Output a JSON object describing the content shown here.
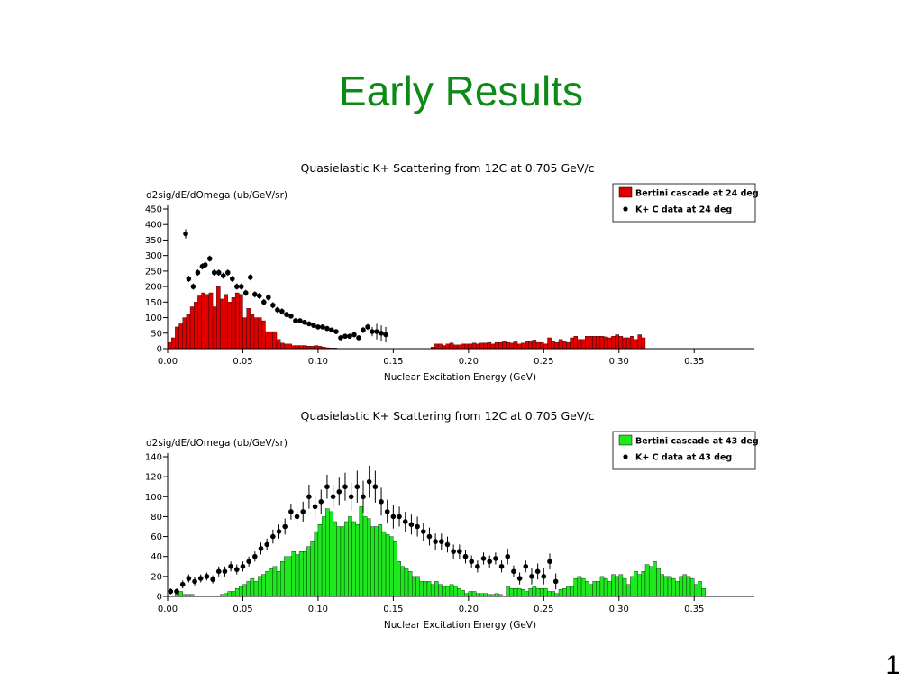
{
  "slide": {
    "title": "Early Results",
    "page_number": "1"
  },
  "chart_data": [
    {
      "type": "bar",
      "title": "Quasielastic K+ Scattering from 12C at 0.705 GeV/c",
      "ylabel": "d2sig/dE/dOmega (ub/GeV/sr)",
      "xlabel": "Nuclear Excitation Energy (GeV)",
      "xlim": [
        0,
        0.39
      ],
      "ylim": [
        0,
        450
      ],
      "xticks": [
        "0.00",
        "0.05",
        "0.10",
        "0.15",
        "0.20",
        "0.25",
        "0.30",
        "0.35"
      ],
      "yticks": [
        "0",
        "50",
        "100",
        "150",
        "200",
        "250",
        "300",
        "350",
        "400",
        "450"
      ],
      "legend_position": "top-right",
      "series": [
        {
          "name": "Bertini cascade  at 24 deg",
          "kind": "histogram",
          "color": "#e00000",
          "bin_width": 0.0025,
          "x_start": 0.0,
          "values": [
            20,
            35,
            70,
            80,
            100,
            110,
            135,
            150,
            170,
            180,
            175,
            180,
            135,
            200,
            160,
            175,
            150,
            165,
            180,
            175,
            100,
            130,
            110,
            100,
            100,
            90,
            55,
            55,
            55,
            30,
            18,
            15,
            15,
            10,
            10,
            10,
            10,
            8,
            8,
            10,
            8,
            5,
            3,
            2,
            2,
            0,
            0,
            0,
            0,
            0,
            0,
            0,
            0,
            0,
            0,
            0,
            0,
            0,
            0,
            0,
            0,
            0,
            0,
            0,
            0,
            0,
            0,
            0,
            0,
            0,
            5,
            15,
            15,
            10,
            15,
            18,
            12,
            12,
            15,
            15,
            15,
            18,
            15,
            18,
            18,
            20,
            15,
            20,
            20,
            25,
            20,
            18,
            22,
            15,
            18,
            25,
            25,
            28,
            20,
            20,
            15,
            35,
            25,
            20,
            30,
            25,
            20,
            35,
            40,
            30,
            30,
            40,
            40,
            40,
            40,
            40,
            38,
            35,
            40,
            45,
            40,
            35,
            35,
            40,
            30,
            45,
            35,
            0
          ]
        },
        {
          "name": "K+ C data at 24 deg",
          "kind": "points",
          "color": "#000000",
          "points": [
            [
              0.012,
              370,
              15
            ],
            [
              0.014,
              225,
              10
            ],
            [
              0.017,
              200,
              10
            ],
            [
              0.02,
              245,
              10
            ],
            [
              0.023,
              265,
              10
            ],
            [
              0.025,
              270,
              10
            ],
            [
              0.028,
              290,
              10
            ],
            [
              0.031,
              245,
              10
            ],
            [
              0.034,
              245,
              10
            ],
            [
              0.037,
              235,
              10
            ],
            [
              0.04,
              245,
              10
            ],
            [
              0.043,
              225,
              10
            ],
            [
              0.046,
              200,
              10
            ],
            [
              0.049,
              200,
              10
            ],
            [
              0.052,
              180,
              10
            ],
            [
              0.055,
              230,
              10
            ],
            [
              0.058,
              175,
              10
            ],
            [
              0.061,
              170,
              10
            ],
            [
              0.064,
              150,
              10
            ],
            [
              0.067,
              165,
              10
            ],
            [
              0.07,
              140,
              10
            ],
            [
              0.073,
              125,
              10
            ],
            [
              0.076,
              120,
              10
            ],
            [
              0.079,
              110,
              8
            ],
            [
              0.082,
              105,
              8
            ],
            [
              0.085,
              90,
              8
            ],
            [
              0.088,
              90,
              8
            ],
            [
              0.091,
              85,
              8
            ],
            [
              0.094,
              80,
              8
            ],
            [
              0.097,
              75,
              8
            ],
            [
              0.1,
              70,
              8
            ],
            [
              0.103,
              70,
              8
            ],
            [
              0.106,
              65,
              8
            ],
            [
              0.109,
              60,
              8
            ],
            [
              0.112,
              55,
              8
            ],
            [
              0.115,
              35,
              8
            ],
            [
              0.118,
              40,
              8
            ],
            [
              0.121,
              40,
              8
            ],
            [
              0.124,
              45,
              8
            ],
            [
              0.127,
              35,
              8
            ],
            [
              0.13,
              60,
              10
            ],
            [
              0.133,
              70,
              10
            ],
            [
              0.136,
              55,
              15
            ],
            [
              0.139,
              55,
              25
            ],
            [
              0.142,
              50,
              25
            ],
            [
              0.145,
              45,
              25
            ]
          ]
        }
      ]
    },
    {
      "type": "bar",
      "title": "Quasielastic K+ Scattering from 12C at 0.705 GeV/c",
      "ylabel": "d2sig/dE/dOmega (ub/GeV/sr)",
      "xlabel": "Nuclear Excitation Energy (GeV)",
      "xlim": [
        0,
        0.39
      ],
      "ylim": [
        0,
        140
      ],
      "xticks": [
        "0.00",
        "0.05",
        "0.10",
        "0.15",
        "0.20",
        "0.25",
        "0.30",
        "0.35"
      ],
      "yticks": [
        "0",
        "20",
        "40",
        "60",
        "80",
        "100",
        "120",
        "140"
      ],
      "legend_position": "top-right",
      "series": [
        {
          "name": "Bertini cascade at 43 deg",
          "kind": "histogram",
          "color": "#1ee81e",
          "bin_width": 0.0025,
          "x_start": 0.0,
          "values": [
            0,
            0,
            5,
            5,
            2,
            2,
            2,
            0,
            0,
            0,
            0,
            0,
            0,
            0,
            2,
            3,
            5,
            5,
            8,
            10,
            12,
            15,
            18,
            15,
            20,
            22,
            25,
            28,
            30,
            25,
            35,
            40,
            40,
            45,
            42,
            45,
            45,
            50,
            55,
            65,
            72,
            80,
            88,
            85,
            75,
            70,
            70,
            75,
            80,
            75,
            72,
            90,
            80,
            78,
            70,
            70,
            72,
            65,
            62,
            60,
            55,
            35,
            30,
            28,
            25,
            20,
            20,
            15,
            15,
            15,
            12,
            15,
            12,
            10,
            10,
            12,
            10,
            8,
            6,
            3,
            5,
            5,
            3,
            3,
            3,
            2,
            2,
            3,
            2,
            0,
            10,
            8,
            8,
            8,
            7,
            5,
            8,
            10,
            8,
            8,
            8,
            5,
            5,
            3,
            7,
            8,
            10,
            10,
            18,
            20,
            18,
            15,
            12,
            15,
            15,
            20,
            18,
            15,
            22,
            20,
            22,
            18,
            12,
            20,
            25,
            22,
            25,
            32,
            30,
            35,
            28,
            22,
            20,
            20,
            18,
            15,
            20,
            22,
            20,
            18,
            12,
            15,
            8,
            0
          ]
        },
        {
          "name": "K+ C data at 43 deg",
          "kind": "points",
          "color": "#000000",
          "points": [
            [
              0.002,
              5,
              3
            ],
            [
              0.006,
              5,
              3
            ],
            [
              0.01,
              12,
              4
            ],
            [
              0.014,
              18,
              4
            ],
            [
              0.018,
              15,
              4
            ],
            [
              0.022,
              18,
              4
            ],
            [
              0.026,
              20,
              4
            ],
            [
              0.03,
              17,
              4
            ],
            [
              0.034,
              25,
              5
            ],
            [
              0.038,
              25,
              5
            ],
            [
              0.042,
              30,
              5
            ],
            [
              0.046,
              27,
              5
            ],
            [
              0.05,
              30,
              5
            ],
            [
              0.054,
              35,
              5
            ],
            [
              0.058,
              40,
              5
            ],
            [
              0.062,
              48,
              6
            ],
            [
              0.066,
              52,
              6
            ],
            [
              0.07,
              60,
              7
            ],
            [
              0.074,
              65,
              7
            ],
            [
              0.078,
              70,
              8
            ],
            [
              0.082,
              85,
              8
            ],
            [
              0.086,
              80,
              10
            ],
            [
              0.09,
              85,
              10
            ],
            [
              0.094,
              100,
              12
            ],
            [
              0.098,
              90,
              12
            ],
            [
              0.102,
              95,
              12
            ],
            [
              0.106,
              110,
              12
            ],
            [
              0.11,
              100,
              12
            ],
            [
              0.114,
              105,
              14
            ],
            [
              0.118,
              110,
              14
            ],
            [
              0.122,
              100,
              14
            ],
            [
              0.126,
              110,
              16
            ],
            [
              0.13,
              100,
              16
            ],
            [
              0.134,
              115,
              16
            ],
            [
              0.138,
              110,
              16
            ],
            [
              0.142,
              95,
              14
            ],
            [
              0.146,
              85,
              12
            ],
            [
              0.15,
              80,
              12
            ],
            [
              0.154,
              80,
              10
            ],
            [
              0.158,
              75,
              10
            ],
            [
              0.162,
              72,
              10
            ],
            [
              0.166,
              70,
              10
            ],
            [
              0.17,
              65,
              9
            ],
            [
              0.174,
              60,
              9
            ],
            [
              0.178,
              55,
              8
            ],
            [
              0.182,
              55,
              8
            ],
            [
              0.186,
              52,
              8
            ],
            [
              0.19,
              45,
              7
            ],
            [
              0.194,
              45,
              7
            ],
            [
              0.198,
              40,
              7
            ],
            [
              0.202,
              35,
              6
            ],
            [
              0.206,
              30,
              6
            ],
            [
              0.21,
              38,
              6
            ],
            [
              0.214,
              35,
              6
            ],
            [
              0.218,
              38,
              6
            ],
            [
              0.222,
              30,
              6
            ],
            [
              0.226,
              40,
              8
            ],
            [
              0.23,
              25,
              6
            ],
            [
              0.234,
              18,
              6
            ],
            [
              0.238,
              30,
              6
            ],
            [
              0.242,
              20,
              8
            ],
            [
              0.246,
              25,
              8
            ],
            [
              0.25,
              20,
              8
            ],
            [
              0.254,
              35,
              8
            ],
            [
              0.258,
              15,
              8
            ]
          ]
        }
      ]
    }
  ]
}
